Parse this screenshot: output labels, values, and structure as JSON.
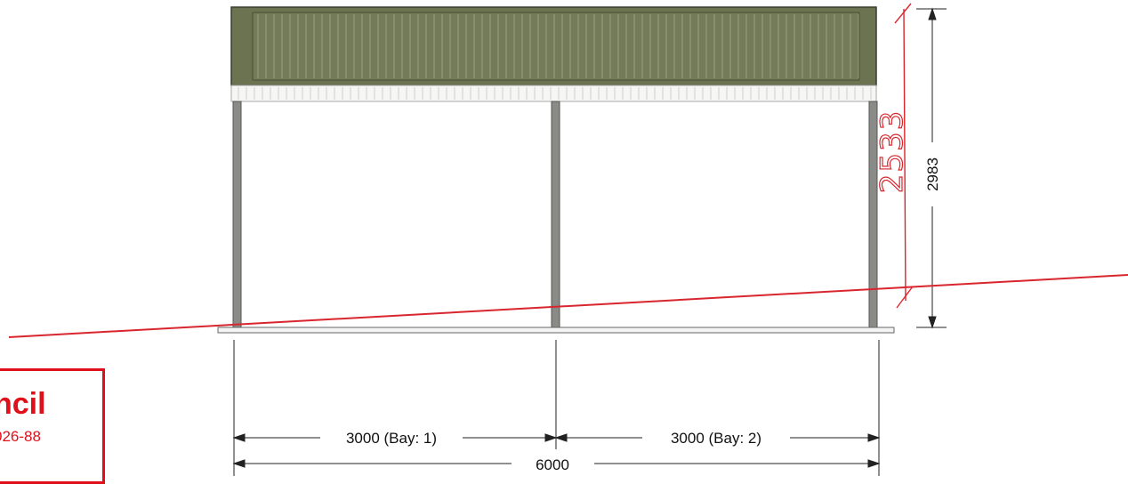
{
  "dimensions": {
    "bay1_label": "3000 (Bay: 1)",
    "bay2_label": "3000 (Bay: 2)",
    "total_width_label": "6000",
    "overall_height_label": "2983",
    "handwritten_height_label": "2533"
  },
  "stamp": {
    "title": "ncil",
    "code": "026-88"
  },
  "colors": {
    "roof": "#6b7350",
    "post": "#8a8a86",
    "markup": "#d9262e",
    "stamp": "#e0101a"
  }
}
